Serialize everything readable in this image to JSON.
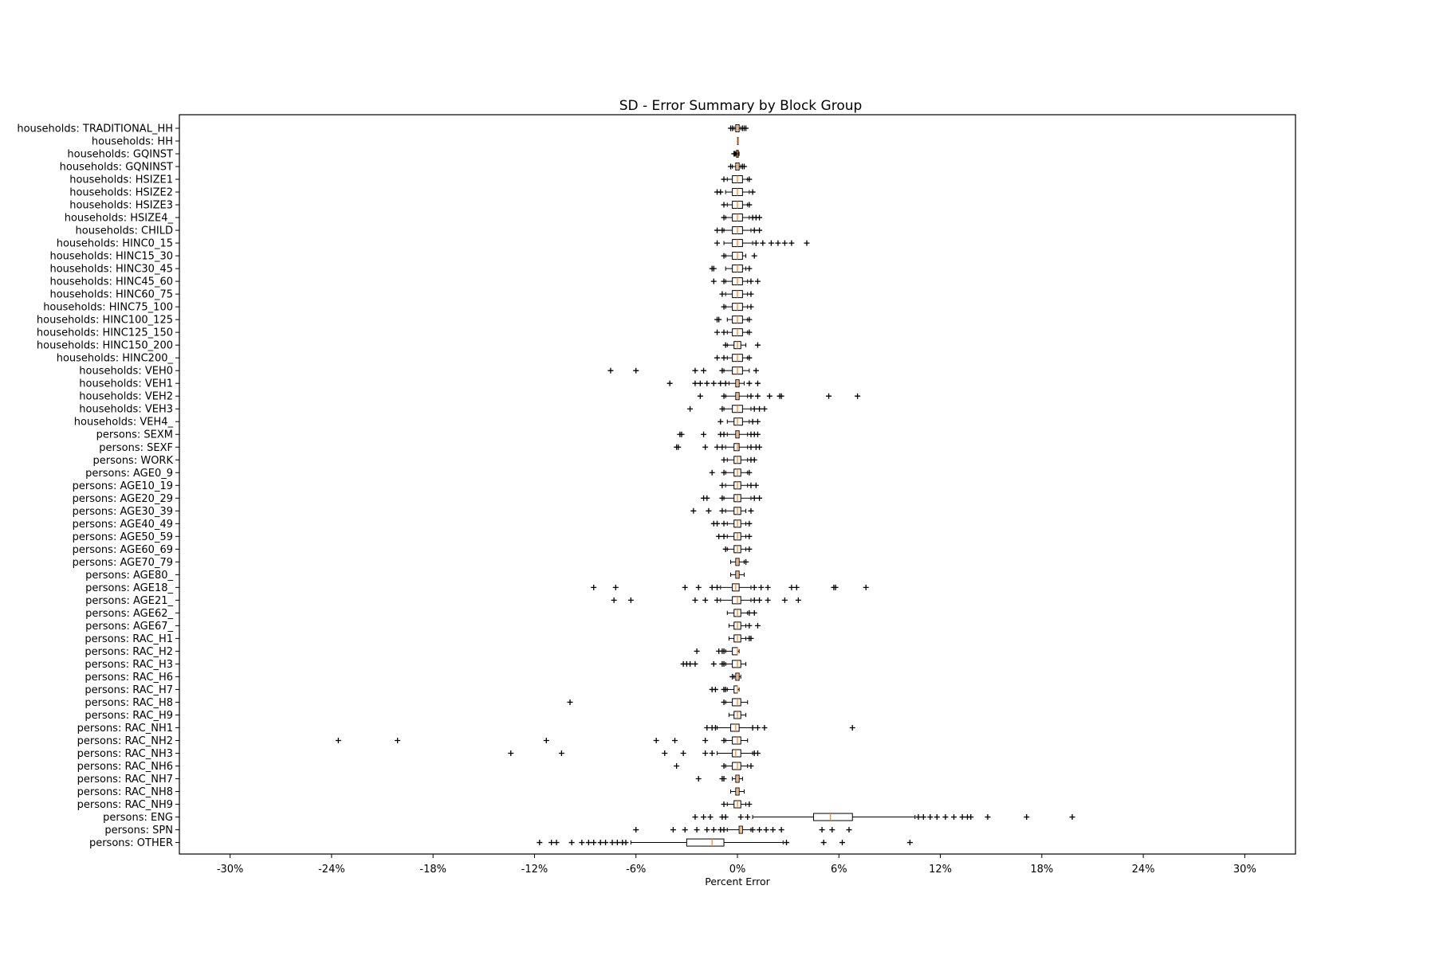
{
  "chart_data": {
    "type": "boxplot",
    "title": "SD - Error Summary by Block Group",
    "xlabel": "Percent Error",
    "ylabel": "",
    "xlim": [
      -33,
      33
    ],
    "xticks": [
      {
        "value": -30,
        "label": "-30%"
      },
      {
        "value": -24,
        "label": "-24%"
      },
      {
        "value": -18,
        "label": "-18%"
      },
      {
        "value": -12,
        "label": "-12%"
      },
      {
        "value": -6,
        "label": "-6%"
      },
      {
        "value": 0,
        "label": "0%"
      },
      {
        "value": 6,
        "label": "6%"
      },
      {
        "value": 12,
        "label": "12%"
      },
      {
        "value": 18,
        "label": "18%"
      },
      {
        "value": 24,
        "label": "24%"
      },
      {
        "value": 30,
        "label": "30%"
      }
    ],
    "grid": false,
    "colors": {
      "box": "#000000",
      "median": "#ff7f0e",
      "flier": "#000000"
    },
    "series": [
      {
        "label": "households: TRADITIONAL_HH",
        "q1": -0.1,
        "median": 0,
        "q3": 0.1,
        "whisker_low": -0.2,
        "whisker_high": 0.2,
        "outliers": [
          -0.4,
          -0.3,
          0.3,
          0.4,
          0.5
        ]
      },
      {
        "label": "households: HH",
        "q1": 0,
        "median": 0,
        "q3": 0,
        "whisker_low": 0,
        "whisker_high": 0,
        "outliers": []
      },
      {
        "label": "households: GQINST",
        "q1": -0.05,
        "median": 0,
        "q3": 0.05,
        "whisker_low": -0.1,
        "whisker_high": 0.1,
        "outliers": [
          -0.2,
          -0.15
        ]
      },
      {
        "label": "households: GQNINST",
        "q1": -0.1,
        "median": 0,
        "q3": 0.1,
        "whisker_low": -0.3,
        "whisker_high": 0.2,
        "outliers": [
          -0.4,
          0.3,
          0.4
        ]
      },
      {
        "label": "households: HSIZE1",
        "q1": -0.3,
        "median": 0,
        "q3": 0.3,
        "whisker_low": -0.6,
        "whisker_high": 0.6,
        "outliers": [
          -0.8,
          0.7
        ]
      },
      {
        "label": "households: HSIZE2",
        "q1": -0.3,
        "median": 0,
        "q3": 0.3,
        "whisker_low": -0.7,
        "whisker_high": 0.7,
        "outliers": [
          -1.2,
          -1.0,
          0.9
        ]
      },
      {
        "label": "households: HSIZE3",
        "q1": -0.3,
        "median": 0,
        "q3": 0.3,
        "whisker_low": -0.6,
        "whisker_high": 0.6,
        "outliers": [
          -0.8,
          0.7
        ]
      },
      {
        "label": "households: HSIZE4_",
        "q1": -0.3,
        "median": 0,
        "q3": 0.3,
        "whisker_low": -0.7,
        "whisker_high": 0.7,
        "outliers": [
          -0.8,
          0.9,
          1.1,
          1.3
        ]
      },
      {
        "label": "households: CHILD",
        "q1": -0.3,
        "median": 0,
        "q3": 0.3,
        "whisker_low": -0.8,
        "whisker_high": 0.8,
        "outliers": [
          -1.2,
          -0.9,
          1.0,
          1.3
        ]
      },
      {
        "label": "households: HINC0_15",
        "q1": -0.3,
        "median": 0,
        "q3": 0.3,
        "whisker_low": -0.8,
        "whisker_high": 0.9,
        "outliers": [
          -1.2,
          1.1,
          1.5,
          2.0,
          2.4,
          2.8,
          3.2,
          4.1
        ]
      },
      {
        "label": "households: HINC15_30",
        "q1": -0.3,
        "median": 0,
        "q3": 0.3,
        "whisker_low": -0.7,
        "whisker_high": 0.5,
        "outliers": [
          -0.8,
          1.0
        ]
      },
      {
        "label": "households: HINC30_45",
        "q1": -0.3,
        "median": 0,
        "q3": 0.3,
        "whisker_low": -0.7,
        "whisker_high": 0.5,
        "outliers": [
          -1.5,
          -1.4,
          0.7
        ]
      },
      {
        "label": "households: HINC45_60",
        "q1": -0.3,
        "median": 0,
        "q3": 0.3,
        "whisker_low": -0.7,
        "whisker_high": 0.6,
        "outliers": [
          -1.4,
          -0.8,
          0.8,
          1.2
        ]
      },
      {
        "label": "households: HINC60_75",
        "q1": -0.3,
        "median": 0,
        "q3": 0.3,
        "whisker_low": -0.7,
        "whisker_high": 0.6,
        "outliers": [
          -0.9,
          0.8
        ]
      },
      {
        "label": "households: HINC75_100",
        "q1": -0.3,
        "median": 0,
        "q3": 0.3,
        "whisker_low": -0.7,
        "whisker_high": 0.6,
        "outliers": [
          -0.8,
          0.8
        ]
      },
      {
        "label": "households: HINC100_125",
        "q1": -0.3,
        "median": 0,
        "q3": 0.3,
        "whisker_low": -0.6,
        "whisker_high": 0.6,
        "outliers": [
          -1.2,
          -1.1,
          0.7
        ]
      },
      {
        "label": "households: HINC125_150",
        "q1": -0.3,
        "median": 0,
        "q3": 0.3,
        "whisker_low": -0.6,
        "whisker_high": 0.6,
        "outliers": [
          -1.2,
          -0.8,
          0.7
        ]
      },
      {
        "label": "households: HINC150_200",
        "q1": -0.2,
        "median": 0,
        "q3": 0.2,
        "whisker_low": -0.6,
        "whisker_high": 0.5,
        "outliers": [
          -0.7,
          1.2
        ]
      },
      {
        "label": "households: HINC200_",
        "q1": -0.3,
        "median": 0,
        "q3": 0.3,
        "whisker_low": -0.6,
        "whisker_high": 0.6,
        "outliers": [
          -1.2,
          -0.8,
          0.7
        ]
      },
      {
        "label": "households: VEH0",
        "q1": -0.3,
        "median": 0,
        "q3": 0.3,
        "whisker_low": -0.8,
        "whisker_high": 0.7,
        "outliers": [
          -7.5,
          -6.0,
          -2.5,
          -2.0,
          -0.9,
          1.1
        ]
      },
      {
        "label": "households: VEH1",
        "q1": -0.1,
        "median": 0,
        "q3": 0.1,
        "whisker_low": -0.5,
        "whisker_high": 0.4,
        "outliers": [
          -4.0,
          -2.5,
          -2.2,
          -1.8,
          -1.4,
          -1.0,
          -0.7,
          0.7,
          1.2
        ]
      },
      {
        "label": "households: VEH2",
        "q1": -0.1,
        "median": 0,
        "q3": 0.1,
        "whisker_low": -0.7,
        "whisker_high": 0.6,
        "outliers": [
          -2.2,
          -0.8,
          0.8,
          1.2,
          1.9,
          2.5,
          2.6,
          5.4,
          7.1
        ]
      },
      {
        "label": "households: VEH3",
        "q1": -0.3,
        "median": 0,
        "q3": 0.3,
        "whisker_low": -0.8,
        "whisker_high": 0.8,
        "outliers": [
          -2.8,
          -0.9,
          1.0,
          1.3,
          1.6
        ]
      },
      {
        "label": "households: VEH4_",
        "q1": -0.2,
        "median": 0,
        "q3": 0.3,
        "whisker_low": -0.6,
        "whisker_high": 0.7,
        "outliers": [
          -1.0,
          0.9,
          1.2
        ]
      },
      {
        "label": "persons: SEXM",
        "q1": -0.1,
        "median": 0,
        "q3": 0.1,
        "whisker_low": -0.6,
        "whisker_high": 0.6,
        "outliers": [
          -3.4,
          -3.3,
          -2.0,
          -1.0,
          -0.8,
          0.8,
          1.0,
          1.2
        ]
      },
      {
        "label": "persons: SEXF",
        "q1": -0.2,
        "median": 0,
        "q3": 0.1,
        "whisker_low": -0.7,
        "whisker_high": 0.6,
        "outliers": [
          -3.6,
          -3.5,
          -1.9,
          -1.2,
          -0.9,
          0.8,
          1.1,
          1.3
        ]
      },
      {
        "label": "persons: WORK",
        "q1": -0.2,
        "median": 0,
        "q3": 0.2,
        "whisker_low": -0.6,
        "whisker_high": 0.6,
        "outliers": [
          -0.8,
          0.8,
          1.0
        ]
      },
      {
        "label": "persons: AGE0_9",
        "q1": -0.2,
        "median": 0,
        "q3": 0.2,
        "whisker_low": -0.7,
        "whisker_high": 0.6,
        "outliers": [
          -1.5,
          -0.8,
          0.7
        ]
      },
      {
        "label": "persons: AGE10_19",
        "q1": -0.2,
        "median": 0,
        "q3": 0.2,
        "whisker_low": -0.7,
        "whisker_high": 0.6,
        "outliers": [
          -0.9,
          0.8,
          1.1
        ]
      },
      {
        "label": "persons: AGE20_29",
        "q1": -0.2,
        "median": 0,
        "q3": 0.2,
        "whisker_low": -0.8,
        "whisker_high": 0.8,
        "outliers": [
          -2.0,
          -1.8,
          -0.9,
          1.0,
          1.3
        ]
      },
      {
        "label": "persons: AGE30_39",
        "q1": -0.2,
        "median": 0,
        "q3": 0.2,
        "whisker_low": -0.7,
        "whisker_high": 0.5,
        "outliers": [
          -2.6,
          -1.7,
          -0.9,
          0.8
        ]
      },
      {
        "label": "persons: AGE40_49",
        "q1": -0.2,
        "median": 0,
        "q3": 0.2,
        "whisker_low": -0.6,
        "whisker_high": 0.5,
        "outliers": [
          -1.4,
          -1.2,
          -0.8,
          0.7
        ]
      },
      {
        "label": "persons: AGE50_59",
        "q1": -0.2,
        "median": 0,
        "q3": 0.2,
        "whisker_low": -0.6,
        "whisker_high": 0.5,
        "outliers": [
          -1.1,
          -0.8,
          0.7
        ]
      },
      {
        "label": "persons: AGE60_69",
        "q1": -0.2,
        "median": 0,
        "q3": 0.2,
        "whisker_low": -0.6,
        "whisker_high": 0.5,
        "outliers": [
          -0.7,
          0.7
        ]
      },
      {
        "label": "persons: AGE70_79",
        "q1": -0.1,
        "median": 0,
        "q3": 0.1,
        "whisker_low": -0.4,
        "whisker_high": 0.4,
        "outliers": [
          0.5
        ]
      },
      {
        "label": "persons: AGE80_",
        "q1": -0.1,
        "median": 0,
        "q3": 0.1,
        "whisker_low": -0.4,
        "whisker_high": 0.4,
        "outliers": []
      },
      {
        "label": "persons: AGE18_",
        "q1": -0.3,
        "median": -0.1,
        "q3": 0.1,
        "whisker_low": -1.0,
        "whisker_high": 0.8,
        "outliers": [
          -8.5,
          -7.2,
          -3.1,
          -2.3,
          -1.5,
          -1.2,
          1.0,
          1.4,
          1.8,
          3.2,
          3.5,
          5.7,
          5.8,
          7.6
        ]
      },
      {
        "label": "persons: AGE21_",
        "q1": -0.3,
        "median": 0,
        "q3": 0.2,
        "whisker_low": -1.0,
        "whisker_high": 0.8,
        "outliers": [
          -7.3,
          -6.3,
          -2.5,
          -1.9,
          -1.2,
          1.0,
          1.3,
          1.8,
          2.8,
          3.6
        ]
      },
      {
        "label": "persons: AGE62_",
        "q1": -0.2,
        "median": 0,
        "q3": 0.2,
        "whisker_low": -0.6,
        "whisker_high": 0.6,
        "outliers": [
          0.7,
          1.0
        ]
      },
      {
        "label": "persons: AGE67_",
        "q1": -0.2,
        "median": 0,
        "q3": 0.2,
        "whisker_low": -0.5,
        "whisker_high": 0.5,
        "outliers": [
          0.7,
          1.2
        ]
      },
      {
        "label": "persons: RAC_H1",
        "q1": -0.2,
        "median": 0,
        "q3": 0.2,
        "whisker_low": -0.5,
        "whisker_high": 0.5,
        "outliers": [
          0.7,
          0.8
        ]
      },
      {
        "label": "persons: RAC_H2",
        "q1": -0.3,
        "median": 0,
        "q3": 0,
        "whisker_low": -0.7,
        "whisker_high": 0.1,
        "outliers": [
          -2.4,
          -1.1,
          -0.9,
          -0.8
        ]
      },
      {
        "label": "persons: RAC_H3",
        "q1": -0.3,
        "median": 0,
        "q3": 0.2,
        "whisker_low": -0.7,
        "whisker_high": 0.5,
        "outliers": [
          -3.2,
          -3.0,
          -2.8,
          -2.5,
          -1.4,
          -0.9,
          -0.8
        ]
      },
      {
        "label": "persons: RAC_H6",
        "q1": -0.1,
        "median": 0,
        "q3": 0.1,
        "whisker_low": -0.2,
        "whisker_high": 0.2,
        "outliers": [
          -0.3
        ]
      },
      {
        "label": "persons: RAC_H7",
        "q1": -0.2,
        "median": 0,
        "q3": 0,
        "whisker_low": -0.6,
        "whisker_high": 0.1,
        "outliers": [
          -1.5,
          -1.3,
          -0.8,
          -0.7
        ]
      },
      {
        "label": "persons: RAC_H8",
        "q1": -0.3,
        "median": 0,
        "q3": 0.2,
        "whisker_low": -0.7,
        "whisker_high": 0.6,
        "outliers": [
          -9.9,
          -0.8
        ]
      },
      {
        "label": "persons: RAC_H9",
        "q1": -0.2,
        "median": 0,
        "q3": 0.2,
        "whisker_low": -0.5,
        "whisker_high": 0.5,
        "outliers": []
      },
      {
        "label": "persons: RAC_NH1",
        "q1": -0.4,
        "median": -0.1,
        "q3": 0.1,
        "whisker_low": -1.2,
        "whisker_high": 0.9,
        "outliers": [
          -1.8,
          -1.5,
          -1.3,
          0.9,
          1.2,
          1.6,
          6.8
        ]
      },
      {
        "label": "persons: RAC_NH2",
        "q1": -0.3,
        "median": 0,
        "q3": 0.2,
        "whisker_low": -0.7,
        "whisker_high": 0.6,
        "outliers": [
          -23.6,
          -20.1,
          -11.3,
          -4.8,
          -3.7,
          -1.9,
          -0.8
        ]
      },
      {
        "label": "persons: RAC_NH3",
        "q1": -0.3,
        "median": -0.1,
        "q3": 0.2,
        "whisker_low": -1.2,
        "whisker_high": 0.9,
        "outliers": [
          -13.4,
          -10.4,
          -4.3,
          -3.2,
          -1.9,
          -1.5,
          1.0,
          1.2
        ]
      },
      {
        "label": "persons: RAC_NH6",
        "q1": -0.3,
        "median": 0,
        "q3": 0.2,
        "whisker_low": -0.7,
        "whisker_high": 0.6,
        "outliers": [
          -3.6,
          -0.8,
          0.8
        ]
      },
      {
        "label": "persons: RAC_NH7",
        "q1": -0.1,
        "median": 0,
        "q3": 0.1,
        "whisker_low": -0.3,
        "whisker_high": 0.3,
        "outliers": [
          -2.3,
          -0.9,
          -0.8
        ]
      },
      {
        "label": "persons: RAC_NH8",
        "q1": -0.1,
        "median": 0,
        "q3": 0.1,
        "whisker_low": -0.4,
        "whisker_high": 0.4,
        "outliers": []
      },
      {
        "label": "persons: RAC_NH9",
        "q1": -0.2,
        "median": 0,
        "q3": 0.2,
        "whisker_low": -0.6,
        "whisker_high": 0.5,
        "outliers": [
          -0.8,
          0.7
        ]
      },
      {
        "label": "persons: ENG",
        "q1": 4.5,
        "median": 5.5,
        "q3": 6.8,
        "whisker_low": 0.9,
        "whisker_high": 10.5,
        "outliers": [
          -2.5,
          -2.0,
          -1.6,
          -0.9,
          -0.7,
          0.2,
          0.6,
          10.7,
          11.0,
          11.4,
          11.8,
          12.3,
          12.8,
          13.3,
          13.6,
          13.8,
          14.8,
          17.1,
          19.8
        ]
      },
      {
        "label": "persons: SPN",
        "q1": 0.1,
        "median": 0.2,
        "q3": 0.3,
        "whisker_low": -0.6,
        "whisker_high": 0.8,
        "outliers": [
          -6.0,
          -3.8,
          -3.1,
          -2.4,
          -1.8,
          -1.4,
          -1.0,
          -0.8,
          0.9,
          1.3,
          1.7,
          2.1,
          2.6,
          5.0,
          5.6,
          6.6
        ]
      },
      {
        "label": "persons: OTHER",
        "q1": -3.0,
        "median": -1.5,
        "q3": -0.8,
        "whisker_low": -6.3,
        "whisker_high": 2.7,
        "outliers": [
          -11.7,
          -11.0,
          -10.7,
          -9.8,
          -9.2,
          -8.8,
          -8.5,
          -8.1,
          -7.8,
          -7.4,
          -7.1,
          -6.8,
          -6.6,
          2.9,
          5.1,
          6.2,
          10.2
        ]
      }
    ]
  }
}
